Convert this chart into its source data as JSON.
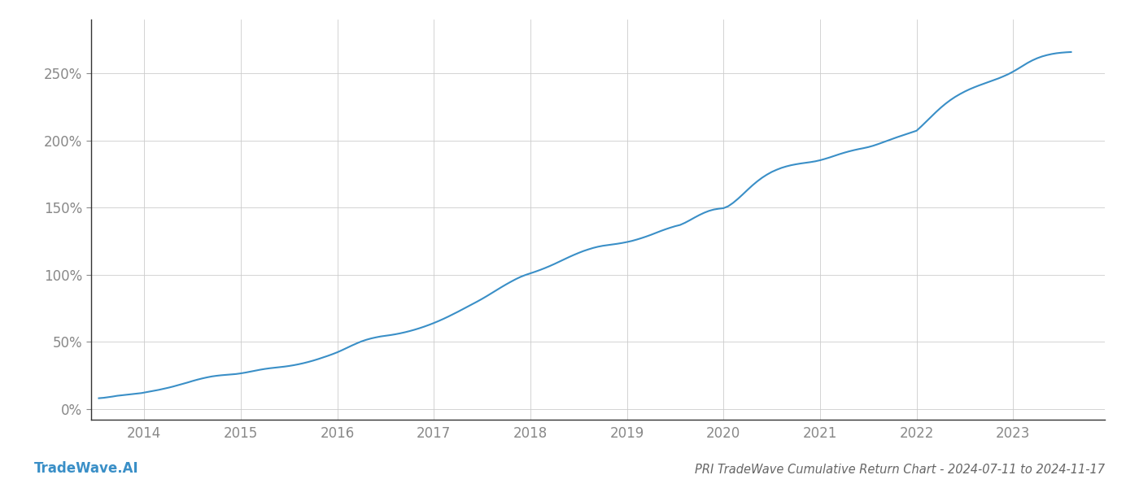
{
  "title": "PRI TradeWave Cumulative Return Chart - 2024-07-11 to 2024-11-17",
  "watermark": "TradeWave.AI",
  "line_color": "#3a8fc7",
  "background_color": "#ffffff",
  "grid_color": "#cccccc",
  "x_years": [
    2014,
    2015,
    2016,
    2017,
    2018,
    2019,
    2020,
    2021,
    2022,
    2023
  ],
  "yticks": [
    0,
    50,
    100,
    150,
    200,
    250
  ],
  "ylim": [
    -8,
    290
  ],
  "xlim": [
    2013.45,
    2023.95
  ],
  "title_fontsize": 10.5,
  "tick_fontsize": 12,
  "watermark_fontsize": 12,
  "title_color": "#666666",
  "tick_color": "#888888",
  "spine_color": "#333333",
  "axis_color": "#888888",
  "x_data": [
    2013.53,
    2013.58,
    2013.62,
    2013.67,
    2013.72,
    2013.77,
    2013.82,
    2013.87,
    2013.92,
    2013.97,
    2014.0,
    2014.05,
    2014.1,
    2014.15,
    2014.2,
    2014.25,
    2014.3,
    2014.35,
    2014.4,
    2014.45,
    2014.5,
    2014.55,
    2014.6,
    2014.65,
    2014.7,
    2014.75,
    2014.8,
    2014.85,
    2014.9,
    2014.95,
    2015.0,
    2015.05,
    2015.1,
    2015.15,
    2015.2,
    2015.25,
    2015.3,
    2015.35,
    2015.4,
    2015.45,
    2015.5,
    2015.55,
    2015.6,
    2015.65,
    2015.7,
    2015.75,
    2015.8,
    2015.85,
    2015.9,
    2015.95,
    2016.0,
    2016.05,
    2016.1,
    2016.15,
    2016.2,
    2016.25,
    2016.3,
    2016.35,
    2016.4,
    2016.45,
    2016.5,
    2016.55,
    2016.6,
    2016.65,
    2016.7,
    2016.75,
    2016.8,
    2016.85,
    2016.9,
    2016.95,
    2017.0,
    2017.05,
    2017.1,
    2017.15,
    2017.2,
    2017.25,
    2017.3,
    2017.35,
    2017.4,
    2017.45,
    2017.5,
    2017.55,
    2017.6,
    2017.65,
    2017.7,
    2017.75,
    2017.8,
    2017.85,
    2017.9,
    2017.95,
    2018.0,
    2018.05,
    2018.1,
    2018.15,
    2018.2,
    2018.25,
    2018.3,
    2018.35,
    2018.4,
    2018.45,
    2018.5,
    2018.55,
    2018.6,
    2018.65,
    2018.7,
    2018.75,
    2018.8,
    2018.85,
    2018.9,
    2018.95,
    2019.0,
    2019.05,
    2019.1,
    2019.15,
    2019.2,
    2019.25,
    2019.3,
    2019.35,
    2019.4,
    2019.45,
    2019.5,
    2019.55,
    2019.6,
    2019.65,
    2019.7,
    2019.75,
    2019.8,
    2019.85,
    2019.9,
    2019.95,
    2020.0,
    2020.05,
    2020.1,
    2020.15,
    2020.2,
    2020.25,
    2020.3,
    2020.35,
    2020.4,
    2020.45,
    2020.5,
    2020.55,
    2020.6,
    2020.65,
    2020.7,
    2020.75,
    2020.8,
    2020.85,
    2020.9,
    2020.95,
    2021.0,
    2021.05,
    2021.1,
    2021.15,
    2021.2,
    2021.25,
    2021.3,
    2021.35,
    2021.4,
    2021.45,
    2021.5,
    2021.55,
    2021.6,
    2021.65,
    2021.7,
    2021.75,
    2021.8,
    2021.85,
    2021.9,
    2021.95,
    2022.0,
    2022.05,
    2022.1,
    2022.15,
    2022.2,
    2022.25,
    2022.3,
    2022.35,
    2022.4,
    2022.45,
    2022.5,
    2022.55,
    2022.6,
    2022.65,
    2022.7,
    2022.75,
    2022.8,
    2022.85,
    2022.9,
    2022.95,
    2023.0,
    2023.05,
    2023.1,
    2023.15,
    2023.2,
    2023.25,
    2023.3,
    2023.35,
    2023.4,
    2023.45,
    2023.5,
    2023.55,
    2023.6
  ],
  "y_data": [
    8.0,
    8.3,
    8.7,
    9.2,
    9.8,
    10.2,
    10.6,
    11.0,
    11.4,
    11.8,
    12.2,
    12.8,
    13.5,
    14.2,
    15.0,
    15.8,
    16.7,
    17.7,
    18.7,
    19.7,
    20.8,
    21.8,
    22.7,
    23.5,
    24.2,
    24.7,
    25.1,
    25.4,
    25.7,
    26.0,
    26.5,
    27.1,
    27.8,
    28.5,
    29.2,
    29.8,
    30.3,
    30.7,
    31.1,
    31.5,
    32.0,
    32.6,
    33.3,
    34.1,
    35.0,
    36.0,
    37.1,
    38.3,
    39.5,
    40.8,
    42.2,
    43.8,
    45.5,
    47.2,
    48.8,
    50.3,
    51.5,
    52.5,
    53.3,
    54.0,
    54.5,
    55.0,
    55.6,
    56.3,
    57.1,
    58.0,
    59.0,
    60.1,
    61.3,
    62.6,
    64.0,
    65.5,
    67.1,
    68.8,
    70.6,
    72.4,
    74.3,
    76.2,
    78.1,
    80.0,
    82.0,
    84.1,
    86.3,
    88.5,
    90.7,
    92.8,
    94.8,
    96.7,
    98.4,
    99.8,
    101.0,
    102.2,
    103.5,
    104.9,
    106.4,
    108.0,
    109.7,
    111.4,
    113.1,
    114.7,
    116.2,
    117.6,
    118.8,
    119.9,
    120.8,
    121.5,
    122.0,
    122.5,
    123.0,
    123.6,
    124.3,
    125.1,
    126.1,
    127.2,
    128.4,
    129.7,
    131.1,
    132.5,
    133.8,
    135.0,
    136.1,
    137.0,
    138.6,
    140.5,
    142.5,
    144.4,
    146.1,
    147.5,
    148.5,
    149.1,
    149.5,
    151.0,
    153.5,
    156.5,
    159.8,
    163.2,
    166.5,
    169.5,
    172.2,
    174.5,
    176.5,
    178.1,
    179.5,
    180.6,
    181.5,
    182.2,
    182.8,
    183.3,
    183.8,
    184.4,
    185.2,
    186.2,
    187.3,
    188.5,
    189.7,
    190.8,
    191.8,
    192.7,
    193.5,
    194.2,
    195.0,
    196.0,
    197.2,
    198.5,
    199.8,
    201.1,
    202.4,
    203.6,
    204.8,
    206.0,
    207.2,
    210.5,
    214.0,
    217.5,
    221.0,
    224.3,
    227.3,
    230.0,
    232.4,
    234.5,
    236.4,
    238.1,
    239.6,
    241.0,
    242.3,
    243.6,
    244.9,
    246.2,
    247.7,
    249.3,
    251.2,
    253.3,
    255.5,
    257.7,
    259.6,
    261.2,
    262.5,
    263.5,
    264.3,
    264.9,
    265.3,
    265.6,
    265.8
  ]
}
